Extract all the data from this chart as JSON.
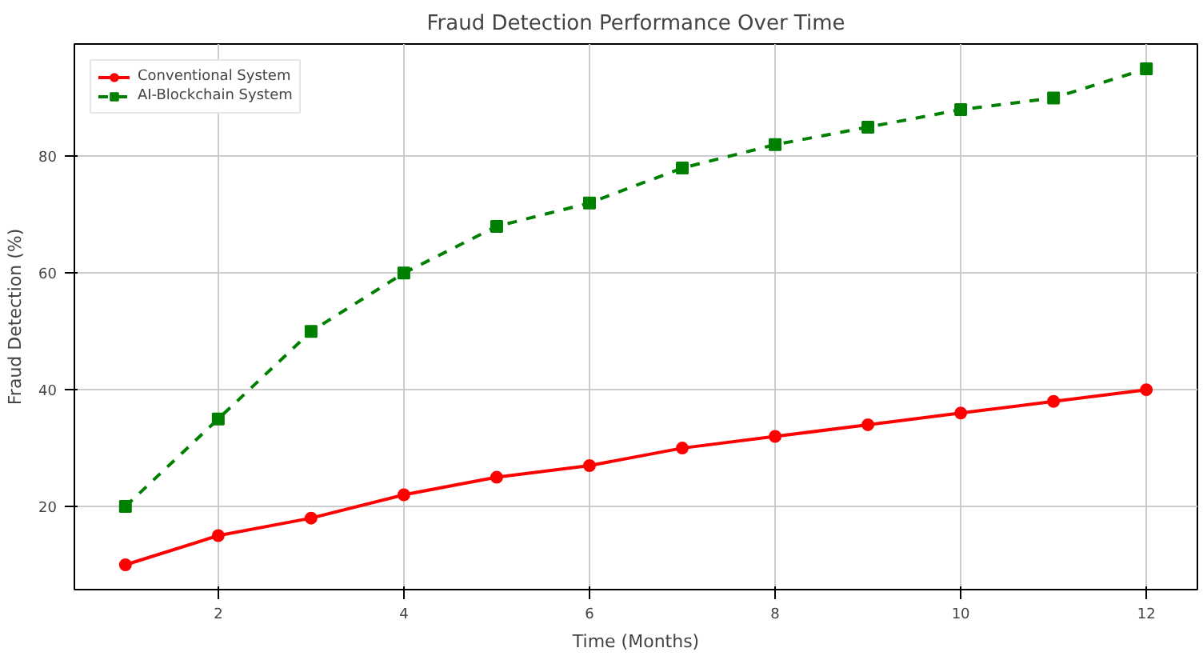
{
  "chart_data": {
    "type": "line",
    "title": "Fraud Detection Performance Over Time",
    "xlabel": "Time (Months)",
    "ylabel": "Fraud Detection (%)",
    "x": [
      1,
      2,
      3,
      4,
      5,
      6,
      7,
      8,
      9,
      10,
      11,
      12
    ],
    "series": [
      {
        "name": "Conventional System",
        "color": "#ff0000",
        "marker": "circle",
        "line_style": "solid",
        "values": [
          10,
          15,
          18,
          22,
          25,
          27,
          30,
          32,
          34,
          36,
          38,
          40
        ]
      },
      {
        "name": "AI-Blockchain System",
        "color": "#008000",
        "marker": "square",
        "line_style": "dashed",
        "values": [
          20,
          35,
          50,
          60,
          68,
          72,
          78,
          82,
          85,
          88,
          90,
          95
        ]
      }
    ],
    "xlim": [
      0.45,
      12.55
    ],
    "ylim": [
      5.75,
      99.25
    ],
    "xticks": [
      2,
      4,
      6,
      8,
      10,
      12
    ],
    "yticks": [
      20,
      40,
      60,
      80
    ],
    "grid": true,
    "legend": "top left"
  }
}
